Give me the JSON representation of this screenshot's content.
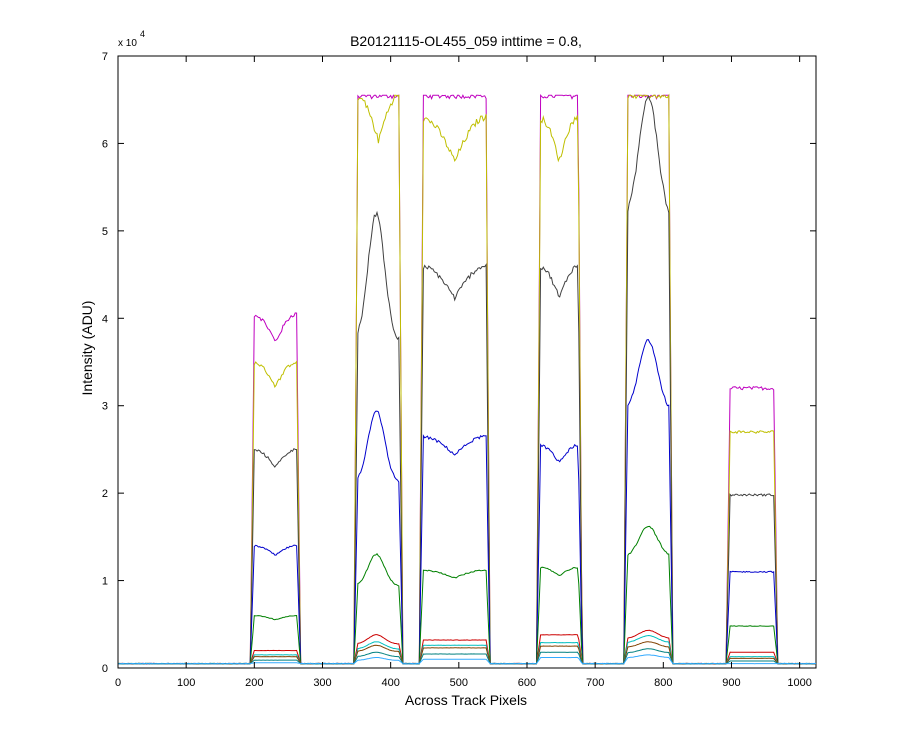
{
  "chart_data": {
    "type": "line",
    "title": "B20121115-OL455_059 inttime = 0.8,",
    "xlabel": "Across Track Pixels",
    "ylabel": "Intensity (ADU)",
    "xlim": [
      0,
      1024
    ],
    "ylim": [
      0,
      70000
    ],
    "x_ticks": [
      0,
      100,
      200,
      300,
      400,
      500,
      600,
      700,
      800,
      900,
      1000
    ],
    "y_ticks": [
      0,
      1,
      2,
      3,
      4,
      5,
      6,
      7
    ],
    "y_multiplier_label": "x 10",
    "y_multiplier_exponent": "4",
    "grid": false,
    "legend": "none",
    "series": [
      {
        "color": "#bf00bf",
        "peaks": [
          40500,
          65500,
          65500,
          65500,
          65500,
          32000
        ],
        "shape": [
          1,
          0,
          0,
          0,
          0,
          0
        ]
      },
      {
        "color": "#bfbf00",
        "peaks": [
          35000,
          65500,
          63000,
          63000,
          65500,
          27000
        ],
        "shape": [
          1,
          1,
          1,
          1,
          0,
          0
        ]
      },
      {
        "color": "#404040",
        "peaks": [
          25000,
          52000,
          46000,
          46000,
          65500,
          19800
        ],
        "shape": [
          1,
          2,
          1,
          1,
          3,
          0
        ]
      },
      {
        "color": "#0000cc",
        "peaks": [
          14000,
          29500,
          26500,
          25500,
          37500,
          11000
        ],
        "shape": [
          1,
          2,
          1,
          1,
          3,
          0
        ]
      },
      {
        "color": "#008000",
        "peaks": [
          6000,
          13000,
          11200,
          11500,
          16200,
          4800
        ],
        "shape": [
          1,
          2,
          1,
          1,
          3,
          0
        ]
      },
      {
        "color": "#cc0000",
        "peaks": [
          2000,
          3800,
          3200,
          3800,
          4300,
          1800
        ],
        "shape": [
          0,
          2,
          0,
          0,
          3,
          0
        ]
      },
      {
        "color": "#00bfbf",
        "peaks": [
          1500,
          3000,
          2600,
          2900,
          3700,
          1300
        ],
        "shape": [
          0,
          2,
          0,
          0,
          3,
          0
        ]
      },
      {
        "color": "#804000",
        "peaks": [
          1300,
          2600,
          2300,
          2500,
          3000,
          1100
        ],
        "shape": [
          0,
          2,
          0,
          0,
          3,
          0
        ]
      },
      {
        "color": "#008080",
        "peaks": [
          900,
          1800,
          1600,
          1800,
          2200,
          800
        ],
        "shape": [
          0,
          2,
          0,
          0,
          3,
          0
        ]
      },
      {
        "color": "#33aaff",
        "peaks": [
          600,
          1200,
          1000,
          1200,
          1500,
          500
        ],
        "shape": [
          0,
          2,
          0,
          0,
          3,
          0
        ]
      }
    ],
    "bands": [
      [
        200,
        262
      ],
      [
        352,
        412
      ],
      [
        448,
        540
      ],
      [
        620,
        675
      ],
      [
        748,
        808
      ],
      [
        898,
        962
      ]
    ],
    "baseline": 500
  }
}
